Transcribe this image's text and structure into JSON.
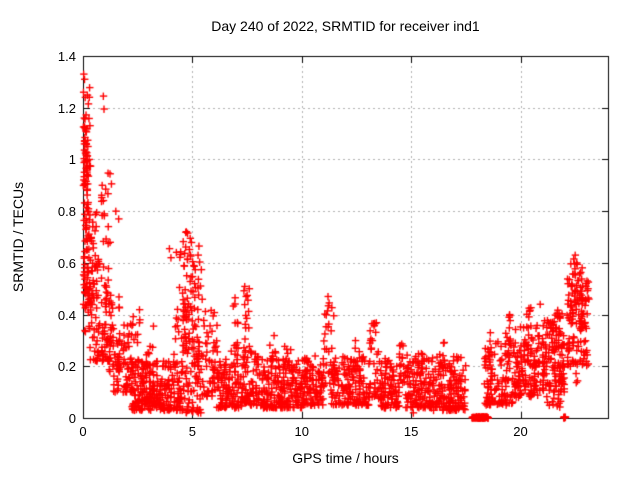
{
  "chart_data": {
    "type": "scatter",
    "title": "Day 240 of 2022, SRMTID for receiver ind1",
    "xlabel": "GPS time / hours",
    "ylabel": "SRMTID / TECUs",
    "xlim": [
      0,
      24
    ],
    "ylim": [
      0,
      1.4
    ],
    "xticks": {
      "values": [
        0,
        5,
        10,
        15,
        20
      ],
      "labels": [
        "0",
        "5",
        "10",
        "15",
        "20"
      ]
    },
    "yticks": {
      "values": [
        0,
        0.2,
        0.4,
        0.6,
        0.8,
        1.0,
        1.2,
        1.4
      ],
      "labels": [
        "0",
        "0.2",
        "0.4",
        "0.6",
        "0.8",
        "1",
        "1.2",
        "1.4"
      ]
    },
    "grid": true,
    "legend": "none",
    "marker": "plus",
    "marker_color": "#ff0000",
    "grid_color": "#b2b2b2",
    "axis_color": "#000000",
    "background_color": "#ffffff",
    "seed": 1337,
    "cluster_format": "[x_start_hour, x_end_hour, n_points, y_min_TECU, y_max_TECU, skew_exponent]",
    "clusters": [
      [
        0.0,
        0.35,
        80,
        0.42,
        1.32,
        1.1
      ],
      [
        0.0,
        0.2,
        25,
        0.9,
        1.16,
        1.0
      ],
      [
        0.05,
        0.7,
        55,
        0.3,
        0.8,
        1.2
      ],
      [
        0.3,
        1.3,
        80,
        0.22,
        0.62,
        1.4
      ],
      [
        0.8,
        1.3,
        18,
        0.65,
        0.97,
        1.0
      ],
      [
        1.0,
        1.7,
        45,
        0.18,
        0.5,
        1.4
      ],
      [
        1.4,
        2.3,
        60,
        0.1,
        0.38,
        1.5
      ],
      [
        2.0,
        2.6,
        14,
        0.2,
        0.42,
        1.2
      ],
      [
        2.2,
        4.6,
        260,
        0.03,
        0.22,
        1.5
      ],
      [
        2.9,
        3.3,
        10,
        0.2,
        0.36,
        1.2
      ],
      [
        4.1,
        4.55,
        14,
        0.22,
        0.66,
        1.2
      ],
      [
        4.55,
        5.0,
        55,
        0.25,
        0.73,
        1.2
      ],
      [
        5.0,
        5.45,
        45,
        0.2,
        0.62,
        1.2
      ],
      [
        4.6,
        5.5,
        45,
        0.02,
        0.2,
        1.3
      ],
      [
        5.45,
        6.15,
        55,
        0.08,
        0.42,
        1.4
      ],
      [
        6.1,
        7.25,
        110,
        0.04,
        0.26,
        1.5
      ],
      [
        6.85,
        7.1,
        10,
        0.25,
        0.47,
        1.1
      ],
      [
        7.25,
        8.1,
        85,
        0.05,
        0.28,
        1.5
      ],
      [
        7.3,
        7.6,
        12,
        0.28,
        0.52,
        1.1
      ],
      [
        8.1,
        10.0,
        190,
        0.04,
        0.23,
        1.6
      ],
      [
        8.5,
        8.8,
        10,
        0.2,
        0.34,
        1.1
      ],
      [
        9.2,
        9.5,
        8,
        0.2,
        0.31,
        1.1
      ],
      [
        10.0,
        11.0,
        100,
        0.05,
        0.24,
        1.5
      ],
      [
        11.0,
        11.5,
        28,
        0.12,
        0.44,
        1.2
      ],
      [
        11.3,
        13.1,
        150,
        0.05,
        0.24,
        1.5
      ],
      [
        12.4,
        12.65,
        10,
        0.18,
        0.3,
        1.1
      ],
      [
        13.05,
        13.5,
        35,
        0.08,
        0.37,
        1.3
      ],
      [
        13.5,
        14.45,
        95,
        0.04,
        0.23,
        1.5
      ],
      [
        14.45,
        14.75,
        20,
        0.1,
        0.34,
        1.2
      ],
      [
        14.75,
        16.0,
        130,
        0.04,
        0.25,
        1.5
      ],
      [
        16.0,
        17.5,
        150,
        0.03,
        0.24,
        1.5
      ],
      [
        16.3,
        16.55,
        8,
        0.2,
        0.3,
        1.1
      ],
      [
        18.35,
        19.65,
        120,
        0.05,
        0.3,
        1.4
      ],
      [
        19.3,
        19.6,
        10,
        0.28,
        0.4,
        1.1
      ],
      [
        19.65,
        21.0,
        140,
        0.08,
        0.36,
        1.3
      ],
      [
        20.25,
        20.5,
        8,
        0.3,
        0.43,
        1.0
      ],
      [
        21.0,
        22.0,
        140,
        0.1,
        0.42,
        1.25
      ],
      [
        21.2,
        21.9,
        12,
        0.04,
        0.1,
        1.0
      ],
      [
        22.1,
        23.1,
        90,
        0.2,
        0.55,
        1.1
      ],
      [
        22.3,
        22.85,
        45,
        0.35,
        0.6,
        1.0
      ],
      [
        22.4,
        22.7,
        6,
        0.12,
        0.22,
        1.0
      ],
      [
        17.78,
        18.52,
        70,
        0.0,
        0.005,
        1.0
      ],
      [
        21.95,
        22.08,
        8,
        0.0,
        0.004,
        1.0
      ]
    ],
    "points": [
      [
        0.03,
        1.33
      ],
      [
        0.07,
        1.31
      ],
      [
        0.02,
        1.26
      ],
      [
        0.1,
        1.24
      ],
      [
        0.05,
        1.16
      ],
      [
        0.12,
        1.11
      ],
      [
        0.93,
        1.245
      ],
      [
        0.96,
        1.195
      ],
      [
        0.22,
        1.05
      ],
      [
        0.28,
        1.0
      ],
      [
        0.18,
        0.97
      ],
      [
        1.5,
        0.8
      ],
      [
        1.63,
        0.77
      ],
      [
        3.95,
        0.655
      ],
      [
        4.02,
        0.62
      ],
      [
        4.78,
        0.715
      ],
      [
        4.9,
        0.695
      ],
      [
        5.3,
        0.665
      ],
      [
        5.26,
        0.63
      ],
      [
        6.95,
        0.465
      ],
      [
        7.6,
        0.5
      ],
      [
        7.45,
        0.47
      ],
      [
        11.2,
        0.47
      ],
      [
        11.25,
        0.445
      ],
      [
        22.5,
        0.63
      ],
      [
        22.43,
        0.615
      ],
      [
        22.57,
        0.6
      ],
      [
        23.0,
        0.52
      ],
      [
        23.08,
        0.5
      ],
      [
        23.12,
        0.46
      ],
      [
        15.1,
        0.02
      ],
      [
        20.9,
        0.44
      ],
      [
        18.62,
        0.33
      ],
      [
        19.5,
        0.4
      ],
      [
        22.2,
        0.21
      ]
    ],
    "zero_value_runs_hours": [
      [
        17.78,
        18.52
      ],
      [
        21.95,
        22.08
      ]
    ]
  }
}
